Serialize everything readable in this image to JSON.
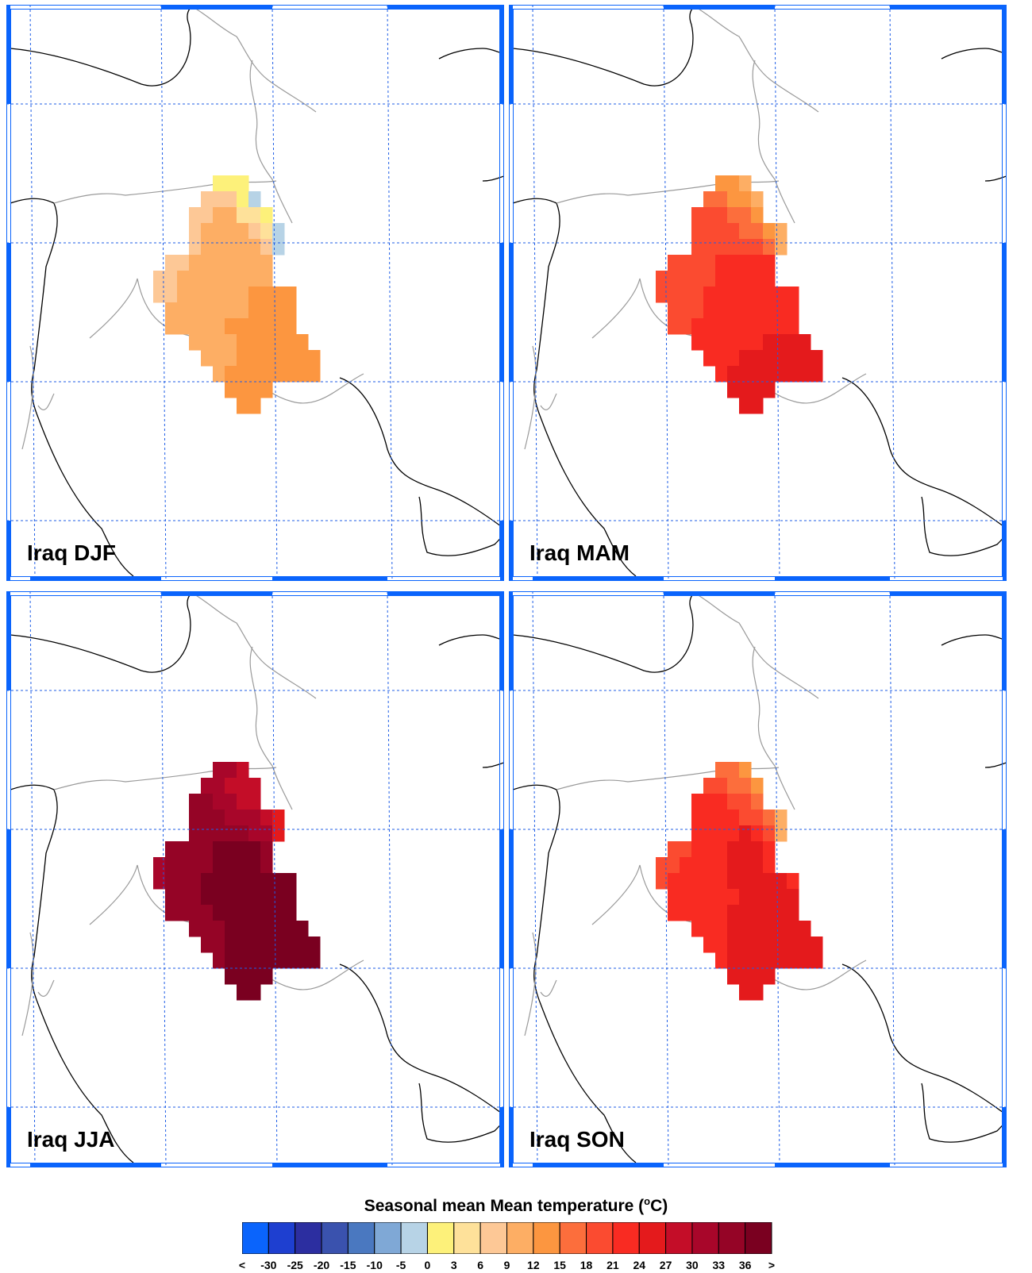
{
  "panels": [
    {
      "label": "Iraq DJF",
      "season": "DJF",
      "scheme": [
        [
          "",
          "",
          "",
          "",
          "",
          "",
          "0.45",
          "0.2",
          "0.6",
          "",
          "",
          "",
          "",
          "",
          "",
          "",
          ""
        ],
        [
          "",
          "",
          "",
          "",
          "",
          "6",
          "6",
          "6",
          "0.5",
          "-5",
          "",
          "",
          "",
          "",
          "",
          "",
          ""
        ],
        [
          "",
          "",
          "",
          "",
          "6",
          "6",
          "9",
          "9",
          "3",
          "3",
          "0",
          "",
          "",
          "",
          "",
          "",
          ""
        ],
        [
          "",
          "",
          "",
          "",
          "6",
          "9",
          "9",
          "9",
          "9",
          "6",
          "3",
          "-5",
          "",
          "",
          "",
          "",
          ""
        ],
        [
          "",
          "",
          "",
          "",
          "6",
          "9",
          "9",
          "9",
          "9",
          "9",
          "6",
          "-5",
          "",
          "",
          "",
          "",
          ""
        ],
        [
          "",
          "",
          "6",
          "6",
          "9",
          "9",
          "9",
          "9",
          "9",
          "9",
          "9",
          "",
          "",
          "",
          "",
          "",
          ""
        ],
        [
          "",
          "6",
          "6",
          "9",
          "9",
          "9",
          "9",
          "9",
          "9",
          "9",
          "9",
          "",
          "",
          "",
          "",
          "",
          ""
        ],
        [
          "",
          "6",
          "6",
          "9",
          "9",
          "9",
          "9",
          "9",
          "9",
          "12",
          "12",
          "12",
          "12",
          "",
          "",
          "",
          ""
        ],
        [
          "",
          "",
          "9",
          "9",
          "9",
          "9",
          "9",
          "9",
          "9",
          "12",
          "12",
          "12",
          "12",
          "",
          "",
          "",
          ""
        ],
        [
          "",
          "",
          "9",
          "9",
          "9",
          "9",
          "9",
          "12",
          "12",
          "12",
          "12",
          "12",
          "12",
          "",
          "",
          "",
          ""
        ],
        [
          "",
          "",
          "",
          "",
          "9",
          "9",
          "9",
          "9",
          "12",
          "12",
          "12",
          "12",
          "12",
          "12",
          "",
          "",
          ""
        ],
        [
          "",
          "",
          "",
          "",
          "",
          "9",
          "9",
          "9",
          "12",
          "12",
          "12",
          "12",
          "12",
          "12",
          "12",
          "",
          ""
        ],
        [
          "",
          "",
          "",
          "",
          "",
          "",
          "9",
          "12",
          "12",
          "12",
          "12",
          "12",
          "12",
          "12",
          "12",
          "",
          ""
        ],
        [
          "",
          "",
          "",
          "",
          "",
          "",
          "",
          "12",
          "12",
          "12",
          "12",
          "",
          "",
          "",
          "",
          "",
          ""
        ],
        [
          "",
          "",
          "",
          "",
          "",
          "",
          "",
          "",
          "12",
          "12",
          "",
          "",
          "",
          "",
          "",
          "",
          ""
        ]
      ]
    },
    {
      "label": "Iraq MAM",
      "season": "MAM",
      "scheme": [
        [
          "",
          "",
          "",
          "",
          "",
          "",
          "12",
          "12",
          "9",
          "",
          "",
          "",
          "",
          "",
          "",
          "",
          ""
        ],
        [
          "",
          "",
          "",
          "",
          "",
          "15",
          "15",
          "12",
          "12",
          "9",
          "",
          "",
          "",
          "",
          "",
          "",
          ""
        ],
        [
          "",
          "",
          "",
          "",
          "18",
          "18",
          "18",
          "15",
          "15",
          "12",
          "",
          "",
          "",
          "",
          "",
          "",
          ""
        ],
        [
          "",
          "",
          "",
          "",
          "18",
          "18",
          "18",
          "18",
          "15",
          "15",
          "12",
          "9",
          "",
          "",
          "",
          "",
          ""
        ],
        [
          "",
          "",
          "",
          "",
          "18",
          "18",
          "18",
          "18",
          "18",
          "18",
          "15",
          "9",
          "",
          "",
          "",
          "",
          ""
        ],
        [
          "",
          "",
          "18",
          "18",
          "18",
          "18",
          "21",
          "21",
          "21",
          "21",
          "21",
          "",
          "",
          "",
          "",
          "",
          ""
        ],
        [
          "",
          "18",
          "18",
          "18",
          "18",
          "18",
          "21",
          "21",
          "21",
          "21",
          "21",
          "",
          "",
          "",
          "",
          "",
          ""
        ],
        [
          "",
          "18",
          "18",
          "18",
          "18",
          "21",
          "21",
          "21",
          "21",
          "21",
          "21",
          "21",
          "21",
          "",
          "",
          "",
          ""
        ],
        [
          "",
          "",
          "18",
          "18",
          "18",
          "21",
          "21",
          "21",
          "21",
          "21",
          "21",
          "21",
          "21",
          "",
          "",
          "",
          ""
        ],
        [
          "",
          "",
          "18",
          "18",
          "21",
          "21",
          "21",
          "21",
          "21",
          "21",
          "21",
          "21",
          "21",
          "",
          "",
          "",
          ""
        ],
        [
          "",
          "",
          "",
          "",
          "21",
          "21",
          "21",
          "21",
          "21",
          "21",
          "24",
          "24",
          "24",
          "24",
          "",
          "",
          ""
        ],
        [
          "",
          "",
          "",
          "",
          "",
          "21",
          "21",
          "21",
          "24",
          "24",
          "24",
          "24",
          "24",
          "24",
          "24",
          "",
          ""
        ],
        [
          "",
          "",
          "",
          "",
          "",
          "",
          "21",
          "24",
          "24",
          "24",
          "24",
          "24",
          "24",
          "24",
          "24",
          "",
          ""
        ],
        [
          "",
          "",
          "",
          "",
          "",
          "",
          "",
          "24",
          "24",
          "24",
          "24",
          "",
          "",
          "",
          "",
          "",
          ""
        ],
        [
          "",
          "",
          "",
          "",
          "",
          "",
          "",
          "",
          "24",
          "24",
          "",
          "",
          "",
          "",
          "",
          "",
          ""
        ]
      ]
    },
    {
      "label": "Iraq JJA",
      "season": "JJA",
      "scheme": [
        [
          "",
          "",
          "",
          "",
          "",
          "",
          "30",
          "30",
          "27",
          "",
          "",
          "",
          "",
          "",
          "",
          "",
          ""
        ],
        [
          "",
          "",
          "",
          "",
          "",
          "30",
          "30",
          "27",
          "27",
          "27",
          "",
          "",
          "",
          "",
          "",
          "",
          ""
        ],
        [
          "",
          "",
          "",
          "",
          "33",
          "33",
          "30",
          "30",
          "27",
          "27",
          "",
          "",
          "",
          "",
          "",
          "",
          ""
        ],
        [
          "",
          "",
          "",
          "",
          "33",
          "33",
          "33",
          "30",
          "30",
          "30",
          "27",
          "24",
          "",
          "",
          "",
          "",
          ""
        ],
        [
          "",
          "",
          "",
          "",
          "33",
          "33",
          "33",
          "33",
          "33",
          "30",
          "30",
          "24",
          "",
          "",
          "",
          "",
          ""
        ],
        [
          "",
          "",
          "33",
          "33",
          "33",
          "33",
          "36",
          "36",
          "36",
          "36",
          "33",
          "",
          "",
          "",
          "",
          "",
          ""
        ],
        [
          "",
          "30",
          "33",
          "33",
          "33",
          "33",
          "36",
          "36",
          "36",
          "36",
          "33",
          "",
          "",
          "",
          "",
          "",
          ""
        ],
        [
          "",
          "30",
          "33",
          "33",
          "33",
          "36",
          "36",
          "36",
          "36",
          "36",
          "36",
          "36",
          "36",
          "",
          "",
          "",
          ""
        ],
        [
          "",
          "",
          "33",
          "33",
          "33",
          "36",
          "36",
          "36",
          "36",
          "36",
          "36",
          "36",
          "36",
          "",
          "",
          "",
          ""
        ],
        [
          "",
          "",
          "33",
          "33",
          "33",
          "33",
          "36",
          "36",
          "36",
          "36",
          "36",
          "36",
          "36",
          "",
          "",
          "",
          ""
        ],
        [
          "",
          "",
          "",
          "",
          "33",
          "33",
          "33",
          "36",
          "36",
          "36",
          "36",
          "36",
          "36",
          "36",
          "",
          "",
          ""
        ],
        [
          "",
          "",
          "",
          "",
          "",
          "33",
          "33",
          "36",
          "36",
          "36",
          "36",
          "36",
          "36",
          "36",
          "36",
          "",
          ""
        ],
        [
          "",
          "",
          "",
          "",
          "",
          "",
          "33",
          "36",
          "36",
          "36",
          "36",
          "36",
          "36",
          "36",
          "36",
          "",
          ""
        ],
        [
          "",
          "",
          "",
          "",
          "",
          "",
          "",
          "36",
          "36",
          "36",
          "36",
          "",
          "",
          "",
          "",
          "",
          ""
        ],
        [
          "",
          "",
          "",
          "",
          "",
          "",
          "",
          "",
          "36",
          "36",
          "",
          "",
          "",
          "",
          "",
          "",
          ""
        ]
      ]
    },
    {
      "label": "Iraq SON",
      "season": "SON",
      "scheme": [
        [
          "",
          "",
          "",
          "",
          "",
          "",
          "15",
          "15",
          "12",
          "",
          "",
          "",
          "",
          "",
          "",
          "",
          ""
        ],
        [
          "",
          "",
          "",
          "",
          "",
          "18",
          "18",
          "15",
          "15",
          "12",
          "",
          "",
          "",
          "",
          "",
          "",
          ""
        ],
        [
          "",
          "",
          "",
          "",
          "21",
          "21",
          "21",
          "18",
          "18",
          "15",
          "",
          "",
          "",
          "",
          "",
          "",
          ""
        ],
        [
          "",
          "",
          "",
          "",
          "21",
          "21",
          "21",
          "21",
          "18",
          "18",
          "15",
          "9",
          "",
          "",
          "",
          "",
          ""
        ],
        [
          "",
          "",
          "",
          "",
          "21",
          "21",
          "21",
          "21",
          "24",
          "21",
          "18",
          "9",
          "",
          "",
          "",
          "",
          ""
        ],
        [
          "",
          "",
          "18",
          "18",
          "21",
          "21",
          "21",
          "24",
          "24",
          "24",
          "21",
          "",
          "",
          "",
          "",
          "",
          ""
        ],
        [
          "",
          "18",
          "18",
          "21",
          "21",
          "21",
          "21",
          "24",
          "24",
          "24",
          "21",
          "",
          "",
          "",
          "",
          "",
          ""
        ],
        [
          "",
          "18",
          "21",
          "21",
          "21",
          "21",
          "21",
          "24",
          "24",
          "24",
          "24",
          "24",
          "21",
          "",
          "",
          "",
          ""
        ],
        [
          "",
          "",
          "21",
          "21",
          "21",
          "21",
          "21",
          "21",
          "24",
          "24",
          "24",
          "24",
          "24",
          "",
          "",
          "",
          ""
        ],
        [
          "",
          "",
          "21",
          "21",
          "21",
          "21",
          "21",
          "24",
          "24",
          "24",
          "24",
          "24",
          "24",
          "",
          "",
          "",
          ""
        ],
        [
          "",
          "",
          "",
          "",
          "21",
          "21",
          "21",
          "24",
          "24",
          "24",
          "24",
          "24",
          "24",
          "24",
          "",
          "",
          ""
        ],
        [
          "",
          "",
          "",
          "",
          "",
          "21",
          "21",
          "24",
          "24",
          "24",
          "24",
          "24",
          "24",
          "24",
          "24",
          "",
          ""
        ],
        [
          "",
          "",
          "",
          "",
          "",
          "",
          "21",
          "24",
          "24",
          "24",
          "24",
          "24",
          "24",
          "24",
          "24",
          "",
          ""
        ],
        [
          "",
          "",
          "",
          "",
          "",
          "",
          "",
          "24",
          "24",
          "24",
          "24",
          "",
          "",
          "",
          "",
          "",
          ""
        ],
        [
          "",
          "",
          "",
          "",
          "",
          "",
          "",
          "",
          "24",
          "24",
          "",
          "",
          "",
          "",
          "",
          "",
          ""
        ]
      ]
    }
  ],
  "legend": {
    "title_prefix": "Seasonal mean Mean temperature (",
    "title_unit_sup": "o",
    "title_suffix": "C)",
    "labels": [
      "<",
      "-30",
      "-25",
      "-20",
      "-15",
      "-10",
      "-5",
      "0",
      "3",
      "6",
      "9",
      "12",
      "15",
      "18",
      "21",
      "24",
      "27",
      "30",
      "33",
      "36",
      ">"
    ],
    "colors": [
      "#0a64fc",
      "#1e3fd0",
      "#2c2ea0",
      "#3a52ae",
      "#4a78c0",
      "#7fa8d6",
      "#b7d3e6",
      "#fdf17a",
      "#fee19a",
      "#fdc896",
      "#fdae64",
      "#fc9640",
      "#fc6e3c",
      "#fb4b30",
      "#f92b22",
      "#e41a1c",
      "#c40d28",
      "#a8062a",
      "#950426",
      "#7a0020"
    ]
  },
  "colors": {
    "grid": "#1f5ee6",
    "frame_accent": "#0a64fc",
    "coast": "#000000",
    "border": "#9a9a9a"
  }
}
